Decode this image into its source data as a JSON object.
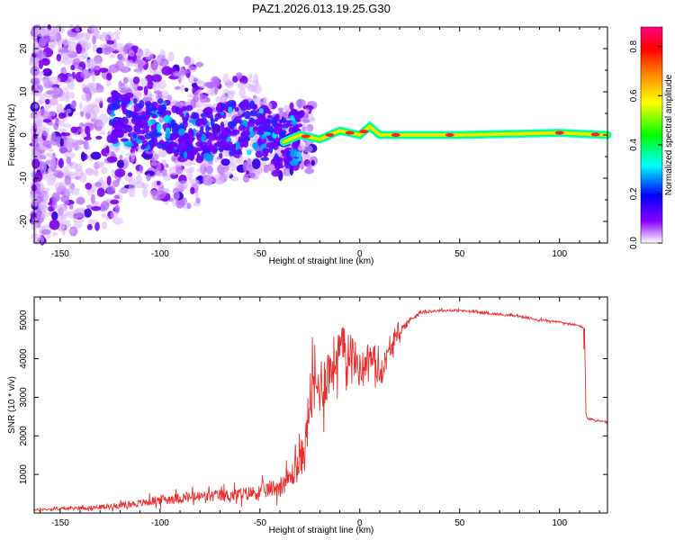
{
  "figure_title": "PAZ1.2026.013.19.25.G30",
  "chart_data": [
    {
      "type": "heatmap",
      "title": "PAZ1.2026.013.19.25.G30",
      "xlabel": "Height of straight line (km)",
      "ylabel": "Frequency (Hz)",
      "xlim": [
        -163,
        124
      ],
      "ylim": [
        -25,
        25
      ],
      "xticks": [
        -150,
        -100,
        -50,
        0,
        50,
        100
      ],
      "yticks": [
        -20,
        -10,
        0,
        10,
        20
      ],
      "grid": false,
      "colorbar": {
        "label": "Normalized spectral amplitude",
        "range": [
          0.0,
          0.88
        ],
        "ticks": [
          0.0,
          0.2,
          0.4,
          0.6,
          0.8
        ],
        "colormap": [
          "#ffffff",
          "#8a00ff",
          "#0000ff",
          "#00ffff",
          "#00ff00",
          "#ffff00",
          "#ff8800",
          "#ff0000",
          "#ff0080"
        ]
      },
      "ridge": {
        "description_points_x": [
          -163,
          -140,
          -120,
          -100,
          -80,
          -60,
          -50,
          -40,
          -30,
          -20,
          -10,
          0,
          5,
          10,
          20,
          50,
          100,
          124
        ],
        "description_points_y": [
          0,
          3,
          4,
          2,
          0,
          2,
          1,
          -2,
          0,
          -1,
          1,
          0,
          2,
          0,
          0,
          0,
          0.5,
          0
        ]
      }
    },
    {
      "type": "line",
      "xlabel": "Height of straight line (km)",
      "ylabel": "SNR (10 * v/v)",
      "xlim": [
        -163,
        124
      ],
      "ylim": [
        0,
        5600
      ],
      "xticks": [
        -150,
        -100,
        -50,
        0,
        50,
        100
      ],
      "yticks": [
        1000,
        2000,
        3000,
        4000,
        5000
      ],
      "grid": false,
      "series": [
        {
          "name": "SNR",
          "color": "#e83030",
          "x": [
            -163,
            -150,
            -130,
            -110,
            -100,
            -80,
            -60,
            -50,
            -40,
            -35,
            -30,
            -27,
            -25,
            -20,
            -15,
            -10,
            -5,
            0,
            5,
            10,
            15,
            20,
            25,
            30,
            40,
            50,
            60,
            70,
            80,
            90,
            100,
            105,
            110,
            112,
            113,
            114,
            118,
            124
          ],
          "values": [
            80,
            110,
            150,
            250,
            350,
            420,
            480,
            550,
            700,
            900,
            1300,
            1800,
            3000,
            3300,
            3700,
            4200,
            4300,
            3700,
            4100,
            3600,
            4200,
            4700,
            5000,
            5200,
            5250,
            5250,
            5200,
            5150,
            5100,
            5000,
            4950,
            4900,
            4850,
            4800,
            2600,
            2450,
            2400,
            2350
          ],
          "noise_amplitude": [
            60,
            80,
            120,
            200,
            250,
            300,
            350,
            400,
            500,
            600,
            900,
            1300,
            1500,
            1500,
            1500,
            1300,
            1100,
            900,
            800,
            700,
            500,
            300,
            150,
            80,
            60,
            60,
            60,
            60,
            60,
            60,
            60,
            60,
            60,
            60,
            60,
            60,
            60,
            60
          ]
        }
      ]
    }
  ]
}
